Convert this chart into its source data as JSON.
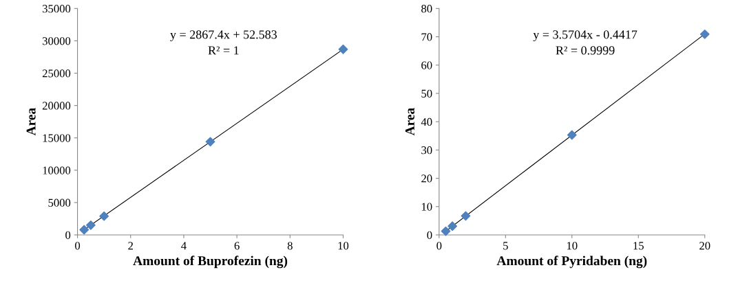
{
  "chart_data": [
    {
      "type": "scatter",
      "xlabel": "Amount of Buprofezin (ng)",
      "ylabel": "Area",
      "grid": false,
      "legend": false,
      "xlim": [
        0,
        10
      ],
      "xticks": [
        0,
        2,
        4,
        6,
        8,
        10
      ],
      "ylim": [
        0,
        35000
      ],
      "yticks": [
        0,
        5000,
        10000,
        15000,
        20000,
        25000,
        30000,
        35000
      ],
      "annotations": [
        "y = 2867.4x + 52.583",
        "R² = 1"
      ],
      "series": [
        {
          "marker": "diamond",
          "color": "#4f81bd",
          "x": [
            0.25,
            0.5,
            1,
            5,
            10
          ],
          "values": [
            800,
            1500,
            2900,
            14400,
            28700
          ]
        },
        {
          "type": "line",
          "marker": "none",
          "color": "#000000",
          "x": [
            0.25,
            10
          ],
          "values": [
            800,
            28700
          ]
        }
      ]
    },
    {
      "type": "scatter",
      "xlabel": "Amount of Pyridaben (ng)",
      "ylabel": "Area",
      "grid": false,
      "legend": false,
      "xlim": [
        0,
        20
      ],
      "xticks": [
        0,
        5,
        10,
        15,
        20
      ],
      "ylim": [
        0,
        80
      ],
      "yticks": [
        0,
        10,
        20,
        30,
        40,
        50,
        60,
        70,
        80
      ],
      "annotations": [
        "y = 3.5704x - 0.4417",
        "R² = 0.9999"
      ],
      "series": [
        {
          "marker": "diamond",
          "color": "#4f81bd",
          "x": [
            0.5,
            1,
            2,
            10,
            20
          ],
          "values": [
            1.3,
            3.1,
            6.7,
            35.3,
            70.9
          ]
        },
        {
          "type": "line",
          "marker": "none",
          "color": "#000000",
          "x": [
            0.5,
            20
          ],
          "values": [
            1.3,
            71
          ]
        }
      ]
    }
  ]
}
